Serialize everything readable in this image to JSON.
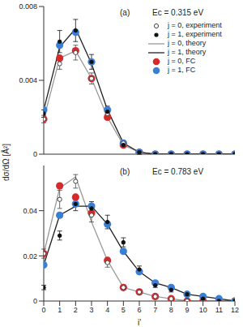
{
  "chart_data": [
    {
      "type": "scatter",
      "title": "(a)",
      "subtitle": "Ec = 0.315 eV",
      "ylabel": "dσ/dΩ [Å²]",
      "legend": "upper right",
      "tick_labels": "y",
      "x": [
        0,
        1,
        2,
        3,
        4,
        5,
        6,
        7,
        8,
        9,
        10,
        11,
        12
      ],
      "xlim": [
        0,
        12
      ],
      "xticks": [
        0,
        1,
        2,
        3,
        4,
        5,
        6,
        7,
        8,
        9,
        10,
        11,
        12
      ],
      "ylim": [
        0,
        0.008
      ],
      "yticks": [
        0,
        0.004,
        0.008
      ],
      "series": [
        {
          "name": "j = 0, experiment",
          "type": "scatter",
          "marker": "open",
          "color": "#444444",
          "values": [
            0.0019,
            0.0049,
            0.0055,
            0.0041,
            0.0022,
            0.0006,
            0.0001,
            0,
            0,
            0,
            0,
            0,
            0
          ],
          "errors": [
            0.0002,
            0.0003,
            0.0004,
            0.0003,
            0.0003,
            0.0001,
            0.0001,
            0,
            0,
            0,
            0,
            0,
            0
          ]
        },
        {
          "name": "j = 1, experiment",
          "type": "scatter",
          "marker": "filled",
          "color": "#111111",
          "values": [
            0.0022,
            0.0061,
            0.0067,
            0.005,
            0.0023,
            0.0005,
            0.0001,
            0,
            0,
            0,
            0,
            0,
            0
          ],
          "errors": [
            0.0002,
            0.0006,
            0.0006,
            0.0004,
            0.0003,
            0.0001,
            0.0001,
            0,
            0,
            0,
            0,
            0,
            0
          ]
        },
        {
          "name": "j = 0, theory",
          "type": "line",
          "color": "#999999",
          "values": [
            0.0019,
            0.0052,
            0.0056,
            0.0041,
            0.002,
            0.0005,
            0.0001,
            0,
            0,
            0,
            0,
            0,
            0
          ]
        },
        {
          "name": "j = 1, theory",
          "type": "line",
          "color": "#222222",
          "values": [
            0.0024,
            0.0058,
            0.0068,
            0.0049,
            0.0024,
            0.0006,
            0.0001,
            0,
            0,
            0,
            0,
            0,
            0
          ]
        },
        {
          "name": "j = 0, FC",
          "type": "scatter",
          "marker": "large",
          "color": "#d62a2a",
          "values": [
            0.0019,
            0.0052,
            0.0056,
            0.0041,
            0.002,
            0.0005,
            0.0001,
            0,
            0,
            0,
            0,
            0,
            0
          ]
        },
        {
          "name": "j = 1, FC",
          "type": "scatter",
          "marker": "large",
          "color": "#3b7fd4",
          "values": [
            0.0024,
            0.0059,
            0.0066,
            0.005,
            0.0024,
            0.0006,
            0.0001,
            0,
            0,
            0,
            0,
            0,
            0
          ]
        }
      ]
    },
    {
      "type": "scatter",
      "title": "(b)",
      "subtitle": "Ec = 0.783 eV",
      "xlabel": "j'",
      "x": [
        0,
        1,
        2,
        3,
        4,
        5,
        6,
        7,
        8,
        9,
        10,
        11,
        12
      ],
      "xlim": [
        0,
        12
      ],
      "xticks": [
        0,
        1,
        2,
        3,
        4,
        5,
        6,
        7,
        8,
        9,
        10,
        11,
        12
      ],
      "ylim": [
        0,
        0.06
      ],
      "yticks": [
        0,
        0.02,
        0.04
      ],
      "series": [
        {
          "type": "scatter",
          "marker": "open",
          "color": "#444444",
          "values": [
            0.021,
            0.045,
            0.053,
            0.038,
            0.017,
            0.006,
            0.004,
            0.002,
            0.001,
            0,
            0,
            0,
            0
          ],
          "errors": [
            0.002,
            0.004,
            0.003,
            0.003,
            0.002,
            0.001,
            0.001,
            0.0005,
            0.0005,
            0,
            0,
            0,
            0
          ]
        },
        {
          "type": "scatter",
          "marker": "filled",
          "color": "#111111",
          "values": [
            0.006,
            0.029,
            0.043,
            0.041,
            0.035,
            0.026,
            0.014,
            0.007,
            0.005,
            0.003,
            0.001,
            0,
            0
          ],
          "errors": [
            0.001,
            0.002,
            0.003,
            0.003,
            0.003,
            0.002,
            0.0015,
            0.001,
            0.001,
            0.0005,
            0.0005,
            0,
            0
          ]
        },
        {
          "type": "line",
          "color": "#999999",
          "values": [
            0.021,
            0.05,
            0.055,
            0.035,
            0.018,
            0.006,
            0.004,
            0.002,
            0.001,
            0,
            0,
            0,
            0
          ]
        },
        {
          "type": "line",
          "color": "#222222",
          "values": [
            0.016,
            0.038,
            0.042,
            0.042,
            0.034,
            0.022,
            0.013,
            0.008,
            0.006,
            0.003,
            0.002,
            0.001,
            0
          ]
        },
        {
          "type": "scatter",
          "marker": "large",
          "color": "#d62a2a",
          "values": [
            0.021,
            0.051,
            0.046,
            0.039,
            0.018,
            0.006,
            0.004,
            0.002,
            0.001,
            0,
            0,
            0,
            0
          ]
        },
        {
          "type": "scatter",
          "marker": "large",
          "color": "#3b7fd4",
          "values": [
            0.016,
            0.038,
            0.043,
            0.042,
            0.034,
            0.022,
            0.013,
            0.008,
            0.006,
            0.003,
            0.002,
            0.001,
            0
          ]
        }
      ]
    }
  ]
}
